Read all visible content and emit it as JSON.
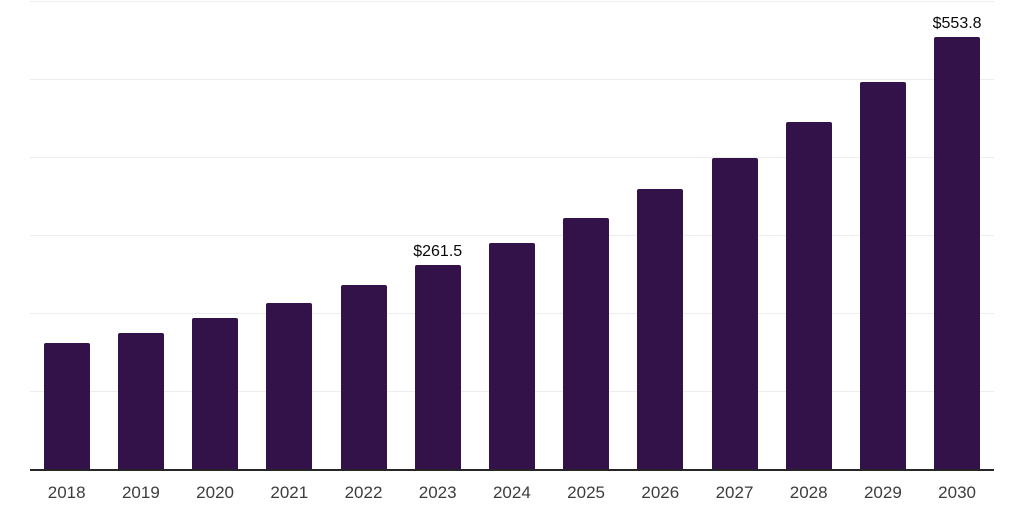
{
  "chart_data": {
    "type": "bar",
    "title": "",
    "xlabel": "",
    "ylabel": "",
    "categories": [
      "2018",
      "2019",
      "2020",
      "2021",
      "2022",
      "2023",
      "2024",
      "2025",
      "2026",
      "2027",
      "2028",
      "2029",
      "2030"
    ],
    "values": [
      161.4,
      174.8,
      193.1,
      213.3,
      235.8,
      261.5,
      290.0,
      321.7,
      358.5,
      399.0,
      445.2,
      496.4,
      553.8
    ],
    "data_labels": {
      "2023": "$261.5",
      "2030": "$553.8"
    },
    "ylim": [
      0,
      600
    ],
    "gridline_values": [
      100,
      200,
      300,
      400,
      500,
      600
    ],
    "grid": "horizontal",
    "legend": "none",
    "y_axis_labels_visible": false,
    "colors": {
      "bar_fill": "#331249",
      "axis_line": "#262626",
      "gridline": "#ededed",
      "x_tick_label": "#3d3d3d",
      "data_label": "#0a0a0a",
      "background": "#ffffff"
    }
  }
}
